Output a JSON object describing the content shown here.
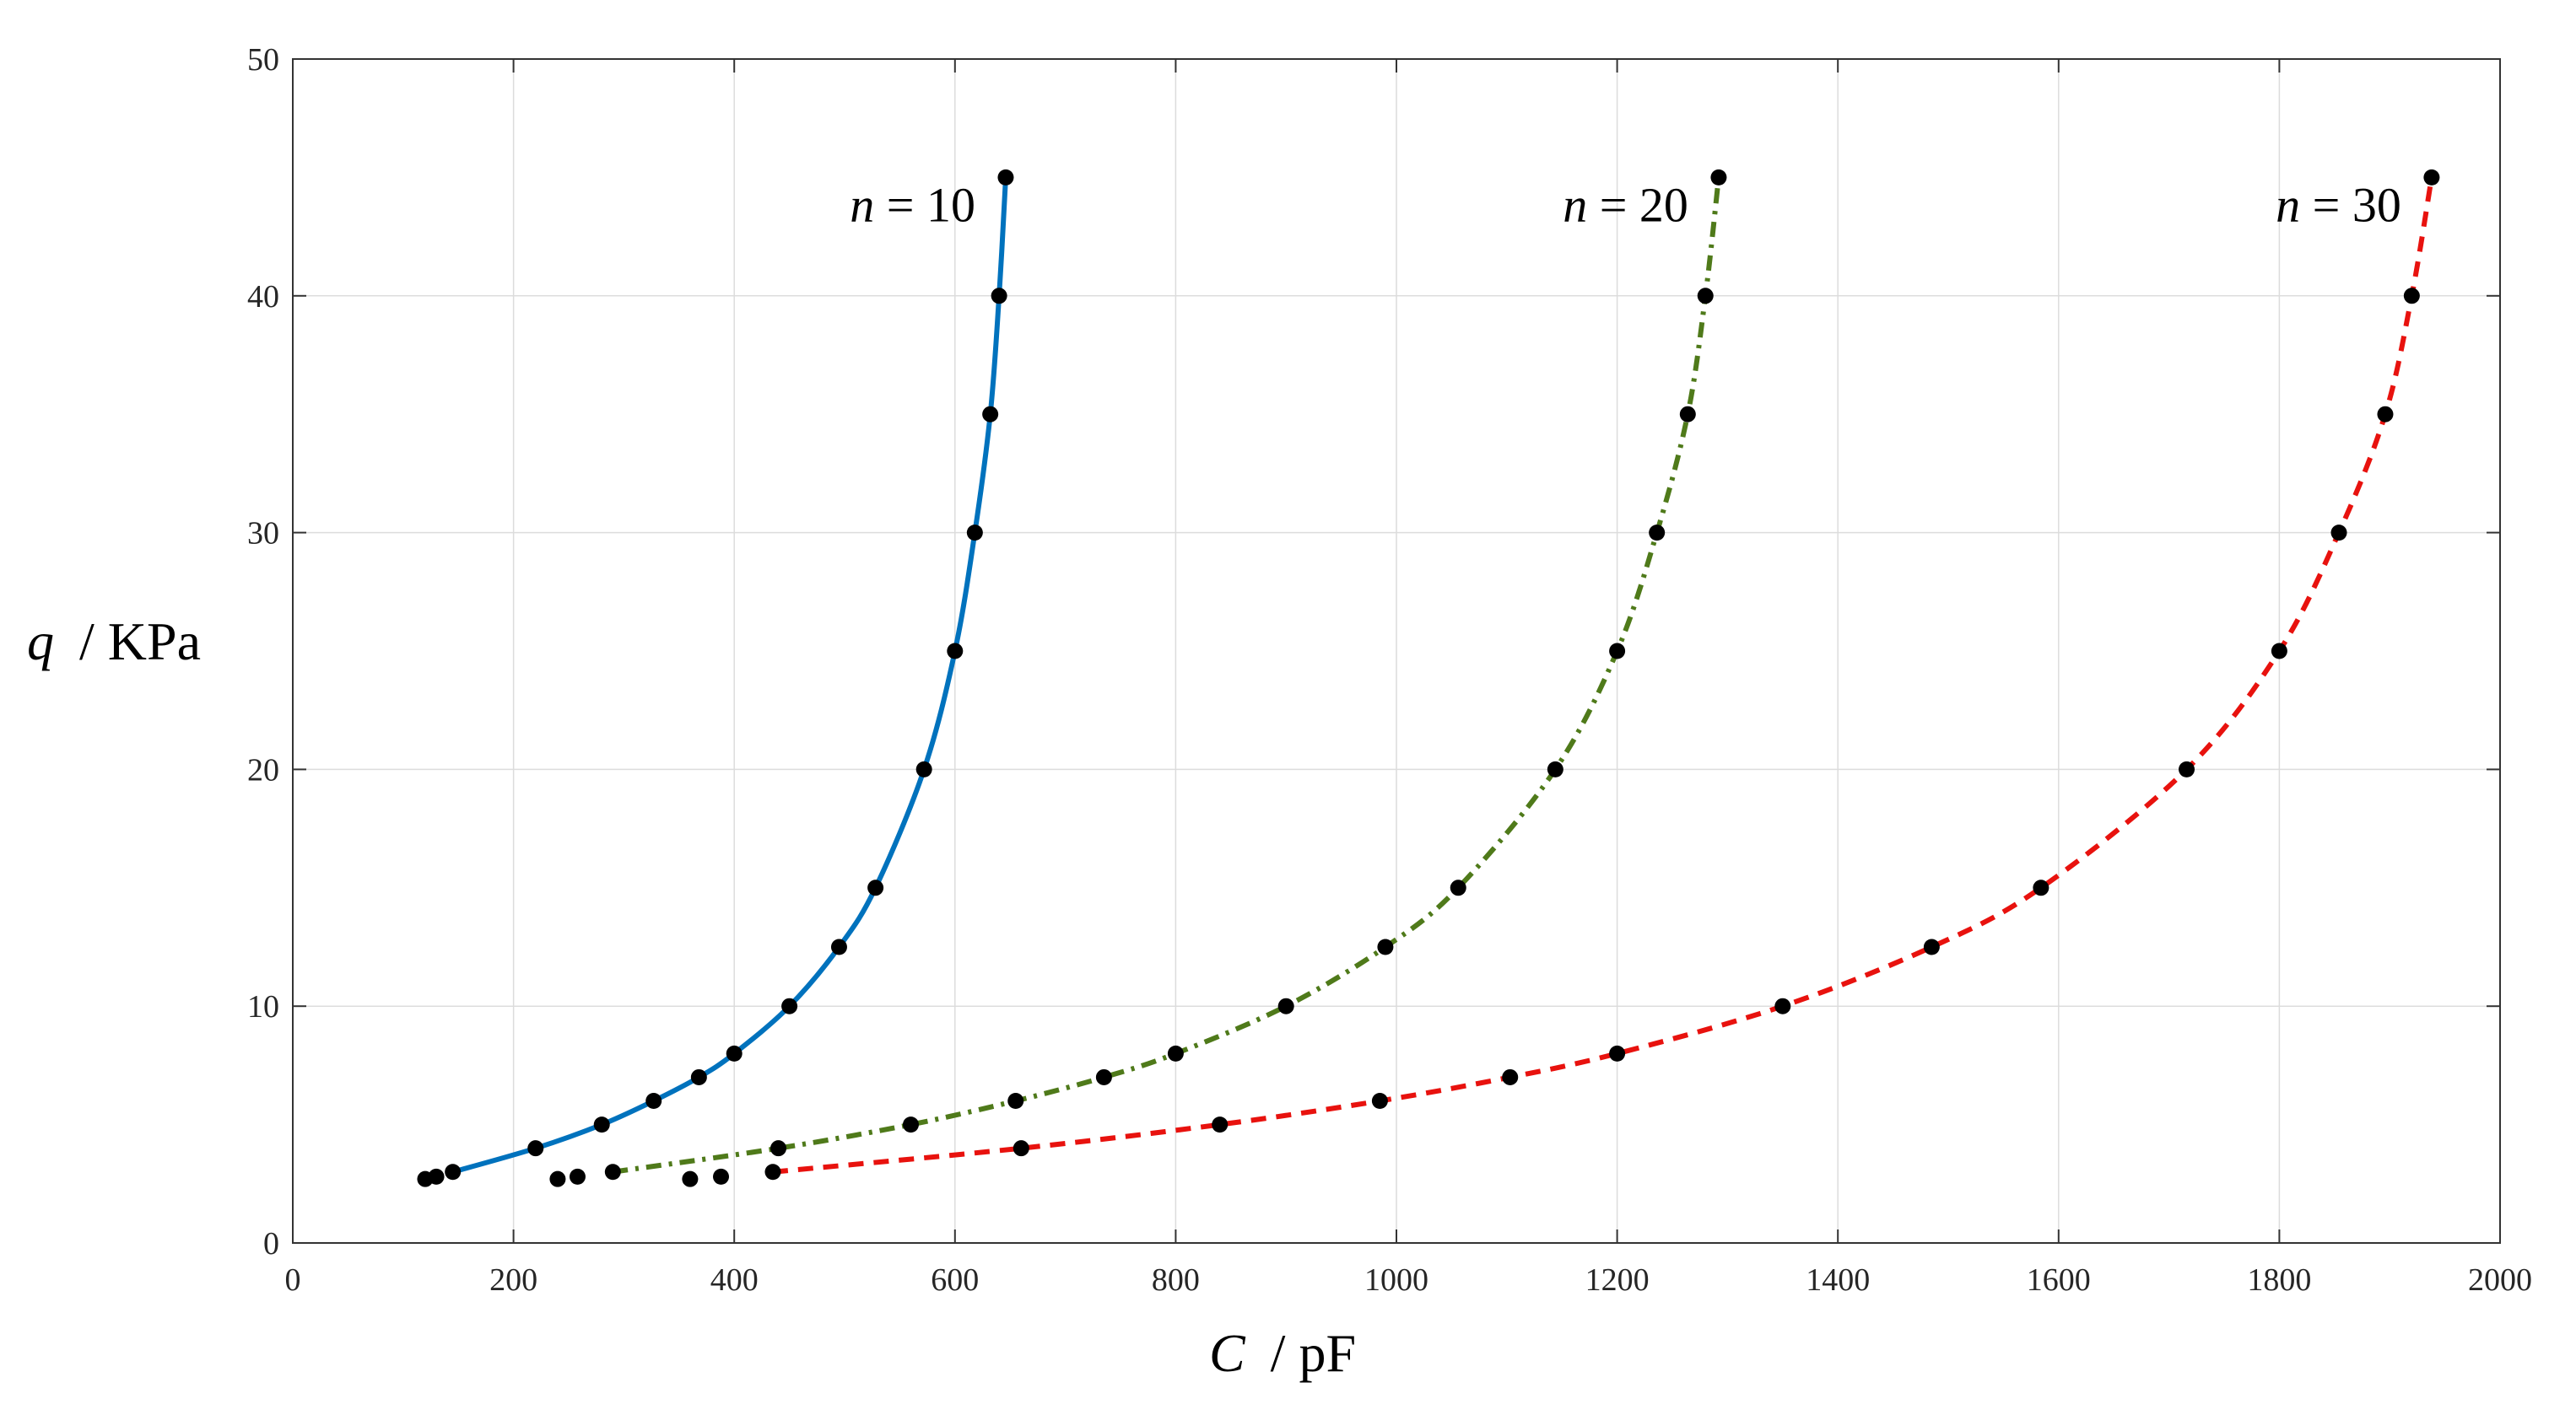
{
  "chart_data": {
    "type": "line",
    "title": "",
    "xlabel": {
      "symbol": "C",
      "unit": "/ pF"
    },
    "ylabel": {
      "symbol": "q",
      "unit": "/ KPa"
    },
    "xlim": [
      0,
      2000
    ],
    "ylim": [
      0,
      50
    ],
    "xticks": [
      0,
      200,
      400,
      600,
      800,
      1000,
      1200,
      1400,
      1600,
      1800,
      2000
    ],
    "yticks": [
      0,
      10,
      20,
      30,
      40,
      50
    ],
    "grid": true,
    "legend": "none",
    "series": [
      {
        "label_var": "n",
        "label_eq": " = 10",
        "color": "#0072bd",
        "line_style": "solid",
        "points": [
          {
            "x": 120,
            "y": 2.7
          },
          {
            "x": 130,
            "y": 2.8
          },
          {
            "x": 145,
            "y": 3
          },
          {
            "x": 220,
            "y": 4
          },
          {
            "x": 280,
            "y": 5
          },
          {
            "x": 327,
            "y": 6
          },
          {
            "x": 368,
            "y": 7
          },
          {
            "x": 400,
            "y": 8
          },
          {
            "x": 450,
            "y": 10
          },
          {
            "x": 495,
            "y": 12.5
          },
          {
            "x": 528,
            "y": 15
          },
          {
            "x": 572,
            "y": 20
          },
          {
            "x": 600,
            "y": 25
          },
          {
            "x": 618,
            "y": 30
          },
          {
            "x": 632,
            "y": 35
          },
          {
            "x": 640,
            "y": 40
          },
          {
            "x": 646,
            "y": 45
          }
        ]
      },
      {
        "label_var": "n",
        "label_eq": " = 20",
        "color": "#4f7a1a",
        "line_style": "dashdot",
        "points": [
          {
            "x": 240,
            "y": 2.7
          },
          {
            "x": 258,
            "y": 2.8
          },
          {
            "x": 290,
            "y": 3
          },
          {
            "x": 440,
            "y": 4
          },
          {
            "x": 560,
            "y": 5
          },
          {
            "x": 655,
            "y": 6
          },
          {
            "x": 735,
            "y": 7
          },
          {
            "x": 800,
            "y": 8
          },
          {
            "x": 900,
            "y": 10
          },
          {
            "x": 990,
            "y": 12.5
          },
          {
            "x": 1056,
            "y": 15
          },
          {
            "x": 1144,
            "y": 20
          },
          {
            "x": 1200,
            "y": 25
          },
          {
            "x": 1236,
            "y": 30
          },
          {
            "x": 1264,
            "y": 35
          },
          {
            "x": 1280,
            "y": 40
          },
          {
            "x": 1292,
            "y": 45
          }
        ]
      },
      {
        "label_var": "n",
        "label_eq": " = 30",
        "color": "#e8120e",
        "line_style": "dashed",
        "points": [
          {
            "x": 360,
            "y": 2.7
          },
          {
            "x": 388,
            "y": 2.8
          },
          {
            "x": 435,
            "y": 3
          },
          {
            "x": 660,
            "y": 4
          },
          {
            "x": 840,
            "y": 5
          },
          {
            "x": 985,
            "y": 6
          },
          {
            "x": 1103,
            "y": 7
          },
          {
            "x": 1200,
            "y": 8
          },
          {
            "x": 1350,
            "y": 10
          },
          {
            "x": 1485,
            "y": 12.5
          },
          {
            "x": 1584,
            "y": 15
          },
          {
            "x": 1716,
            "y": 20
          },
          {
            "x": 1800,
            "y": 25
          },
          {
            "x": 1854,
            "y": 30
          },
          {
            "x": 1896,
            "y": 35
          },
          {
            "x": 1920,
            "y": 40
          },
          {
            "x": 1938,
            "y": 45
          }
        ]
      }
    ]
  }
}
